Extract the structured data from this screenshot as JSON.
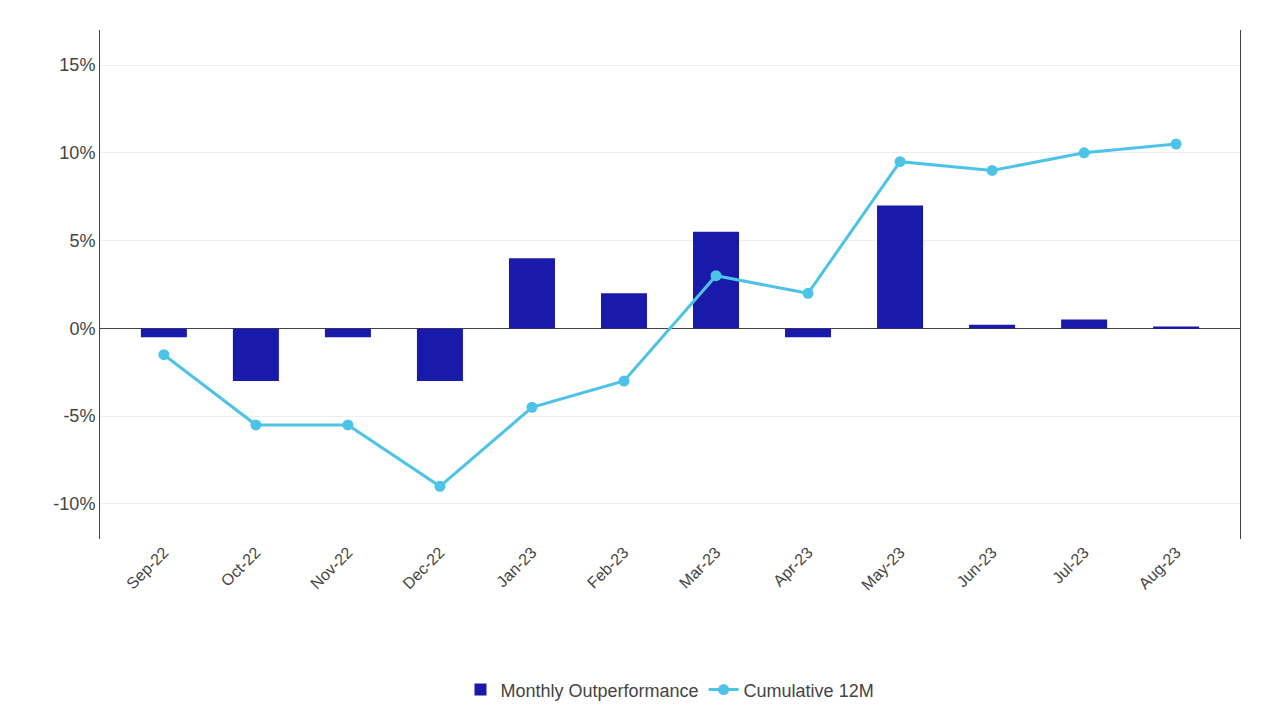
{
  "chart_data": {
    "type": "bar",
    "categories": [
      "Sep-22",
      "Oct-22",
      "Nov-22",
      "Dec-22",
      "Jan-23",
      "Feb-23",
      "Mar-23",
      "Apr-23",
      "May-23",
      "Jun-23",
      "Jul-23",
      "Aug-23"
    ],
    "series": [
      {
        "name": "Monthly Outperformance",
        "type": "bar",
        "color": "#1a1aaa",
        "values": [
          -0.5,
          -3.0,
          -0.5,
          -3.0,
          4.0,
          2.0,
          5.5,
          -0.5,
          7.0,
          0.2,
          0.5,
          0.1
        ]
      },
      {
        "name": "Cumulative 12M",
        "type": "line",
        "color": "#4dc3e8",
        "marker": "o",
        "values": [
          -1.5,
          -5.5,
          -5.5,
          -9.0,
          -4.5,
          -3.0,
          3.0,
          2.0,
          9.5,
          9.0,
          10.0,
          10.5
        ]
      }
    ],
    "ylim": [
      -12,
      17
    ],
    "yticks": [
      {
        "value": -10,
        "label": "-10%"
      },
      {
        "value": -5,
        "label": "-5%"
      },
      {
        "value": 0,
        "label": "0%"
      },
      {
        "value": 5,
        "label": "5%"
      },
      {
        "value": 10,
        "label": "10%"
      },
      {
        "value": 15,
        "label": "15%"
      }
    ],
    "grid": true,
    "legend": "bottom"
  }
}
